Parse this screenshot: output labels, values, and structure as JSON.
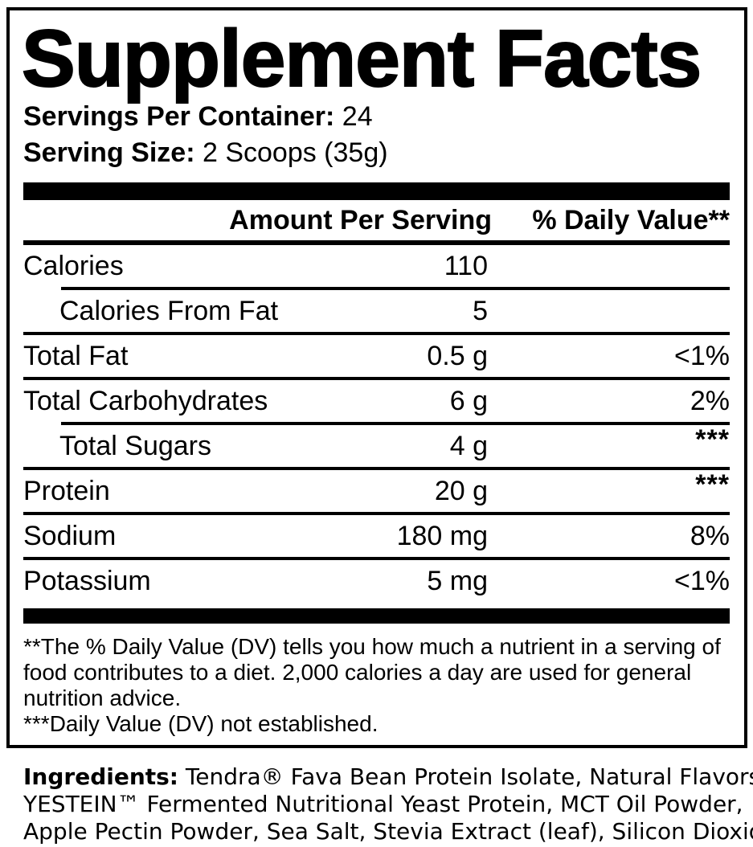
{
  "panel": {
    "title": "Supplement Facts",
    "servings_per_container_label": "Servings Per Container:",
    "servings_per_container_value": "24",
    "serving_size_label": "Serving Size:",
    "serving_size_value": "2 Scoops (35g)",
    "columns": {
      "amount": "Amount Per Serving",
      "daily_value": "% Daily Value**"
    },
    "rows": [
      {
        "label": "Calories",
        "amount": "110",
        "dv": ""
      },
      {
        "label": "Calories From Fat",
        "amount": "5",
        "dv": ""
      },
      {
        "label": "Total Fat",
        "amount": "0.5 g",
        "dv": "<1%"
      },
      {
        "label": "Total Carbohydrates",
        "amount": "6 g",
        "dv": "2%"
      },
      {
        "label": "Total Sugars",
        "amount": "4 g",
        "dv": "***"
      },
      {
        "label": "Protein",
        "amount": "20 g",
        "dv": "***"
      },
      {
        "label": "Sodium",
        "amount": "180 mg",
        "dv": "8%"
      },
      {
        "label": "Potassium",
        "amount": "5 mg",
        "dv": "<1%"
      }
    ],
    "footnote_lines": [
      "**The % Daily Value (DV) tells you how much a nutrient in a serving of",
      "food contributes to a diet. 2,000 calories a day are used for general",
      "nutrition advice.",
      "***Daily Value (DV) not established."
    ]
  },
  "ingredients": {
    "label": "Ingredients:",
    "line1_rest": "Tendra® Fava Bean Protein Isolate, Natural Flavors,",
    "line2": "YESTEIN™ Fermented Nutritional Yeast Protein, MCT Oil Powder,",
    "line3": "Apple Pectin Powder, Sea Salt, Stevia Extract (leaf), Silicon Dioxide."
  },
  "colors": {
    "text": "#000000",
    "background": "#ffffff"
  }
}
